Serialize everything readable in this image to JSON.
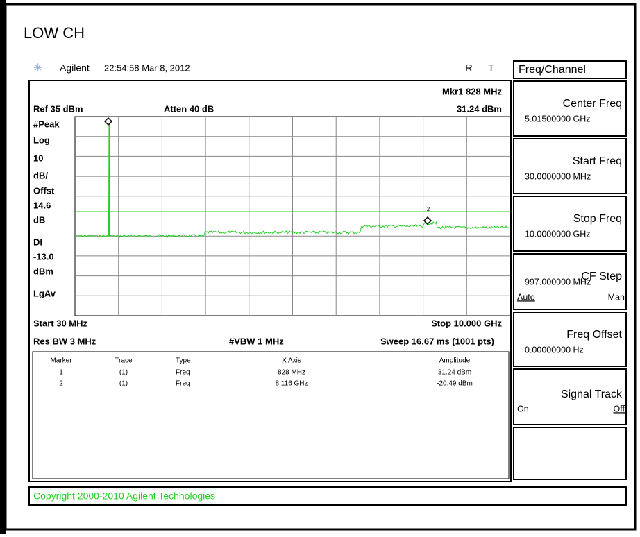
{
  "title": "LOW CH",
  "header": {
    "brand": "Agilent",
    "timestamp": "22:54:58  Mar 8, 2012",
    "status": [
      "R",
      "T"
    ]
  },
  "display": {
    "marker_readout": "Mkr1  828 MHz",
    "marker_amplitude": "31.24 dBm",
    "ref": "Ref 35 dBm",
    "atten": "Atten 40 dB",
    "left_labels": [
      "#Peak",
      "Log",
      "10",
      "dB/",
      "Offst",
      "14.6",
      "dB",
      "Dl",
      "-13.0",
      "dBm",
      "LgAv"
    ],
    "marker2_tag": "2",
    "start": "Start 30 MHz",
    "stop": "Stop 10.000 GHz",
    "res_bw": "Res BW 3 MHz",
    "vbw": "#VBW 1 MHz",
    "sweep": "Sweep 16.67 ms (1001 pts)"
  },
  "marker_table": {
    "columns": [
      "Marker",
      "Trace",
      "Type",
      "X Axis",
      "Amplitude"
    ],
    "rows": [
      [
        "1",
        "(1)",
        "Freq",
        "828 MHz",
        "31.24 dBm"
      ],
      [
        "2",
        "(1)",
        "Freq",
        "8.116 GHz",
        "-20.49 dBm"
      ]
    ]
  },
  "softkeys": {
    "menu_title": "Freq/Channel",
    "keys": [
      {
        "label": "Center Freq",
        "value": "5.01500000 GHz"
      },
      {
        "label": "Start Freq",
        "value": "30.0000000 MHz"
      },
      {
        "label": "Stop Freq",
        "value": "10.0000000 GHz"
      },
      {
        "label": "CF Step",
        "value": "997.000000 MHz",
        "options": [
          "Auto",
          "Man"
        ]
      },
      {
        "label": "Freq Offset",
        "value": "0.00000000  Hz"
      },
      {
        "label": "Signal Track",
        "options": [
          "On",
          "Off"
        ]
      }
    ]
  },
  "copyright": "Copyright 2000-2010 Agilent Technologies"
}
